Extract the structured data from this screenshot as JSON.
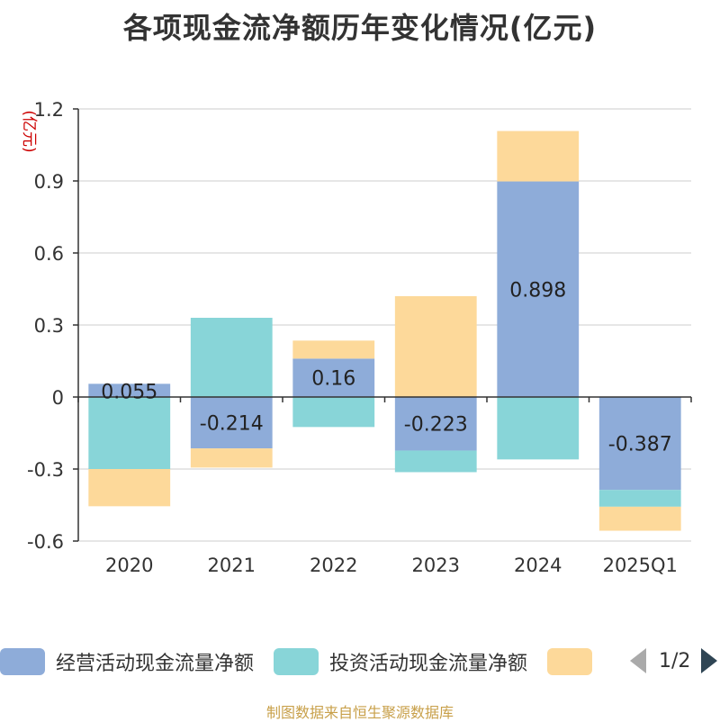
{
  "chart_data": {
    "type": "bar",
    "stacked": true,
    "title": "各项现金流净额历年变化情况(亿元)",
    "ylabel": "(亿元)",
    "ylim": [
      -0.6,
      1.2
    ],
    "yticks": [
      -0.6,
      -0.3,
      0,
      0.3,
      0.6,
      0.9,
      1.2
    ],
    "ytick_labels": [
      "-0.6",
      "-0.3",
      "0",
      "0.3",
      "0.6",
      "0.9",
      "1.2"
    ],
    "categories": [
      "2020",
      "2021",
      "2022",
      "2023",
      "2024",
      "2025Q1"
    ],
    "grid": true,
    "legend_position": "bottom",
    "series": [
      {
        "name": "经营活动现金流量净额",
        "color": "#8eacd9",
        "values": [
          0.055,
          -0.214,
          0.16,
          -0.223,
          0.898,
          -0.387
        ],
        "labels": [
          "0.055",
          "-0.214",
          "0.16",
          "-0.223",
          "0.898",
          "-0.387"
        ]
      },
      {
        "name": "投资活动现金流量净额",
        "color": "#88d5d8",
        "values": [
          -0.3,
          0.33,
          -0.125,
          -0.09,
          -0.26,
          -0.07
        ]
      },
      {
        "name": "",
        "color": "#fdd99a",
        "values": [
          -0.155,
          -0.08,
          0.075,
          0.42,
          0.21,
          -0.1
        ]
      }
    ]
  },
  "legend": {
    "page": "1/2"
  },
  "source": "制图数据来自恒生聚源数据库"
}
